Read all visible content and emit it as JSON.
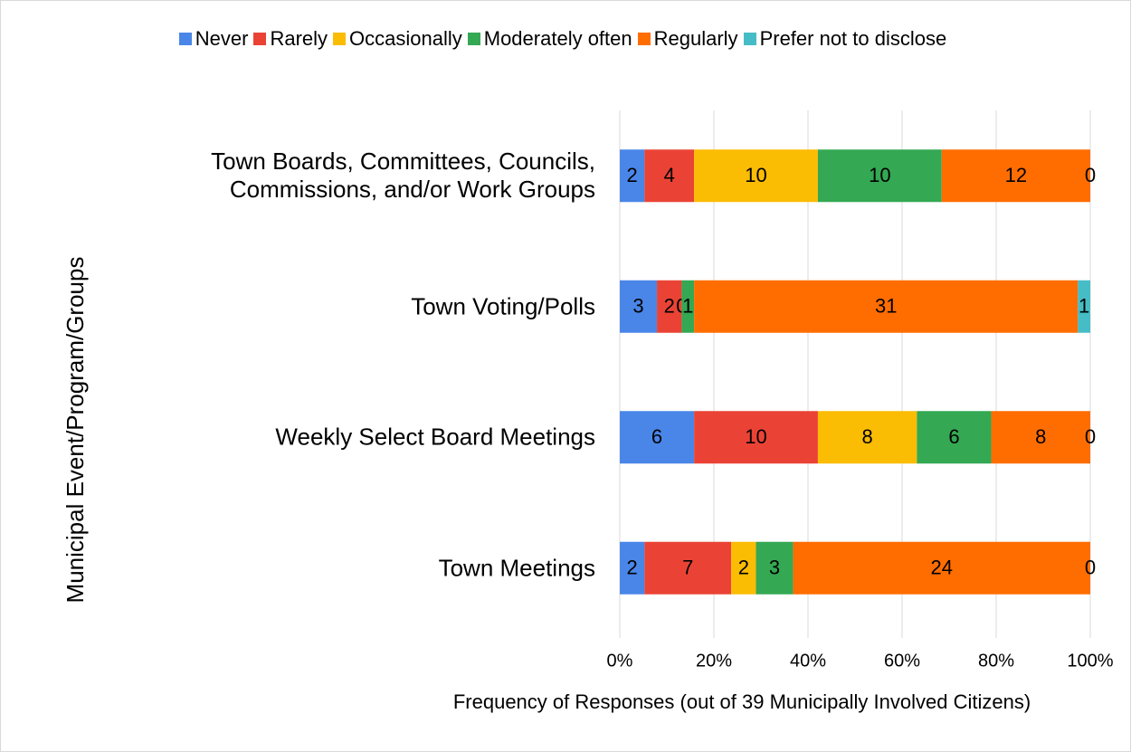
{
  "chart_data": {
    "type": "stacked_bar_100",
    "orientation": "horizontal",
    "categories": [
      "Town Boards, Committees, Councils, Commissions, and/or Work Groups",
      "Town Voting/Polls",
      "Weekly Select Board Meetings",
      "Town Meetings"
    ],
    "series": [
      {
        "name": "Never",
        "color": "#4a86e8",
        "values": [
          2,
          3,
          6,
          2
        ]
      },
      {
        "name": "Rarely",
        "color": "#ea4335",
        "values": [
          4,
          2,
          10,
          7
        ]
      },
      {
        "name": "Occasionally",
        "color": "#fbbc04",
        "values": [
          10,
          0,
          8,
          2
        ]
      },
      {
        "name": "Moderately often",
        "color": "#34a853",
        "values": [
          10,
          1,
          6,
          3
        ]
      },
      {
        "name": "Regularly",
        "color": "#ff6d01",
        "values": [
          12,
          31,
          8,
          24
        ]
      },
      {
        "name": "Prefer not to disclose",
        "color": "#46bdc6",
        "values": [
          0,
          1,
          0,
          0
        ]
      }
    ],
    "xlim": [
      0,
      100
    ],
    "xticks": [
      {
        "value": 0,
        "label": "0%"
      },
      {
        "value": 20,
        "label": "20%"
      },
      {
        "value": 40,
        "label": "40%"
      },
      {
        "value": 60,
        "label": "60%"
      },
      {
        "value": 80,
        "label": "80%"
      },
      {
        "value": 100,
        "label": "100%"
      }
    ],
    "x_label": "Frequency of Responses (out of 39 Municipally Involved Citizens)",
    "y_label": "Municipal Event/Program/Groups",
    "grid": true,
    "legend": "top"
  }
}
